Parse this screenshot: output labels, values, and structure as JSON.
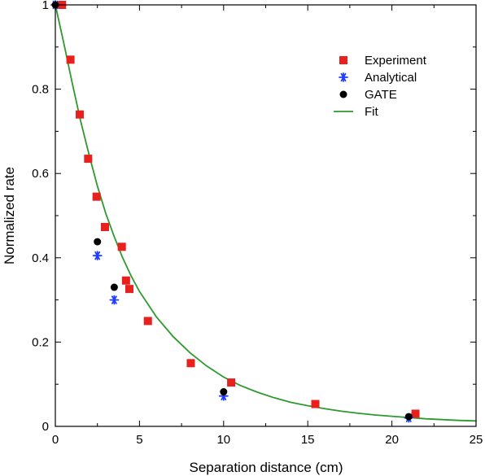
{
  "chart_data": {
    "type": "scatter",
    "title": "",
    "xlabel": "Separation distance (cm)",
    "ylabel": "Normalized rate",
    "xlim": [
      0,
      25
    ],
    "ylim": [
      0,
      1
    ],
    "xticks": [
      "0",
      "5",
      "10",
      "15",
      "20",
      "25"
    ],
    "yticks": [
      "0",
      "0.2",
      "0.4",
      "0.6",
      "0.8",
      "1"
    ],
    "legend_position": "top-right",
    "series": [
      {
        "name": "Experiment",
        "marker": "square",
        "color": "#e8201e",
        "points": [
          [
            0.4,
            1.0
          ],
          [
            0.9,
            0.87
          ],
          [
            1.45,
            0.74
          ],
          [
            1.95,
            0.635
          ],
          [
            2.45,
            0.545
          ],
          [
            2.95,
            0.473
          ],
          [
            3.95,
            0.426
          ],
          [
            4.2,
            0.346
          ],
          [
            4.4,
            0.326
          ],
          [
            5.5,
            0.25
          ],
          [
            8.05,
            0.15
          ],
          [
            10.45,
            0.104
          ],
          [
            15.45,
            0.053
          ],
          [
            21.4,
            0.03
          ]
        ]
      },
      {
        "name": "Analytical",
        "marker": "asterisk",
        "color": "#1f3cff",
        "points": [
          [
            0.0,
            1.0
          ],
          [
            2.5,
            0.405
          ],
          [
            3.5,
            0.3
          ],
          [
            10.0,
            0.072
          ],
          [
            21.0,
            0.02
          ]
        ]
      },
      {
        "name": "GATE",
        "marker": "circle",
        "color": "#000000",
        "points": [
          [
            0.0,
            1.0
          ],
          [
            2.5,
            0.438
          ],
          [
            3.5,
            0.33
          ],
          [
            10.0,
            0.082
          ],
          [
            21.0,
            0.023
          ]
        ]
      },
      {
        "name": "Fit",
        "marker": "line",
        "color": "#2e9a2e",
        "curve": [
          [
            0,
            1.0
          ],
          [
            0.5,
            0.91
          ],
          [
            1,
            0.815
          ],
          [
            1.5,
            0.725
          ],
          [
            2,
            0.645
          ],
          [
            2.5,
            0.57
          ],
          [
            3,
            0.505
          ],
          [
            3.5,
            0.45
          ],
          [
            4,
            0.4
          ],
          [
            4.5,
            0.357
          ],
          [
            5,
            0.32
          ],
          [
            6,
            0.26
          ],
          [
            7,
            0.213
          ],
          [
            8,
            0.175
          ],
          [
            9,
            0.143
          ],
          [
            10,
            0.117
          ],
          [
            11,
            0.097
          ],
          [
            12,
            0.081
          ],
          [
            13,
            0.068
          ],
          [
            14,
            0.057
          ],
          [
            15,
            0.049
          ],
          [
            16,
            0.042
          ],
          [
            17,
            0.036
          ],
          [
            18,
            0.031
          ],
          [
            19,
            0.027
          ],
          [
            20,
            0.024
          ],
          [
            21,
            0.021
          ],
          [
            22,
            0.018
          ],
          [
            23,
            0.016
          ],
          [
            24,
            0.014
          ],
          [
            25,
            0.013
          ]
        ]
      }
    ]
  }
}
